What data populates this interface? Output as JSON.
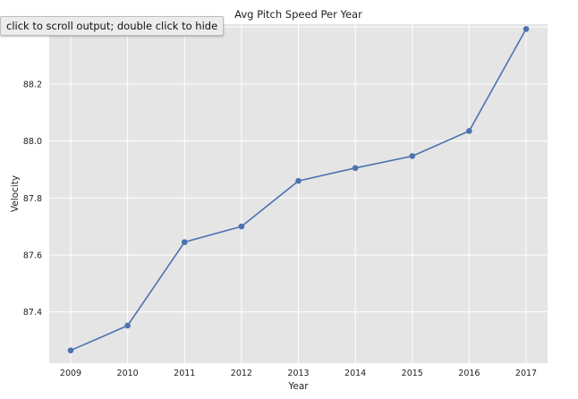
{
  "output_tooltip": {
    "text": "click to scroll output; double click to hide"
  },
  "chart_data": {
    "type": "line",
    "title": "Avg Pitch Speed Per Year",
    "xlabel": "Year",
    "ylabel": "Velocity",
    "categories": [
      "2009",
      "2010",
      "2011",
      "2012",
      "2013",
      "2014",
      "2015",
      "2016",
      "2017"
    ],
    "series": [
      {
        "values": [
          87.265,
          87.352,
          87.645,
          87.7,
          87.86,
          87.905,
          87.947,
          88.035,
          88.393
        ],
        "color": "#4c72b0"
      }
    ],
    "yticks": [
      "87.4",
      "87.6",
      "87.8",
      "88.0",
      "88.2",
      "88.4"
    ],
    "ylim": [
      87.22,
      88.41
    ],
    "grid": true,
    "style": {
      "plot_background": "#e5e5e5",
      "grid_color": "#ffffff",
      "line_color": "#4c72b0"
    }
  }
}
